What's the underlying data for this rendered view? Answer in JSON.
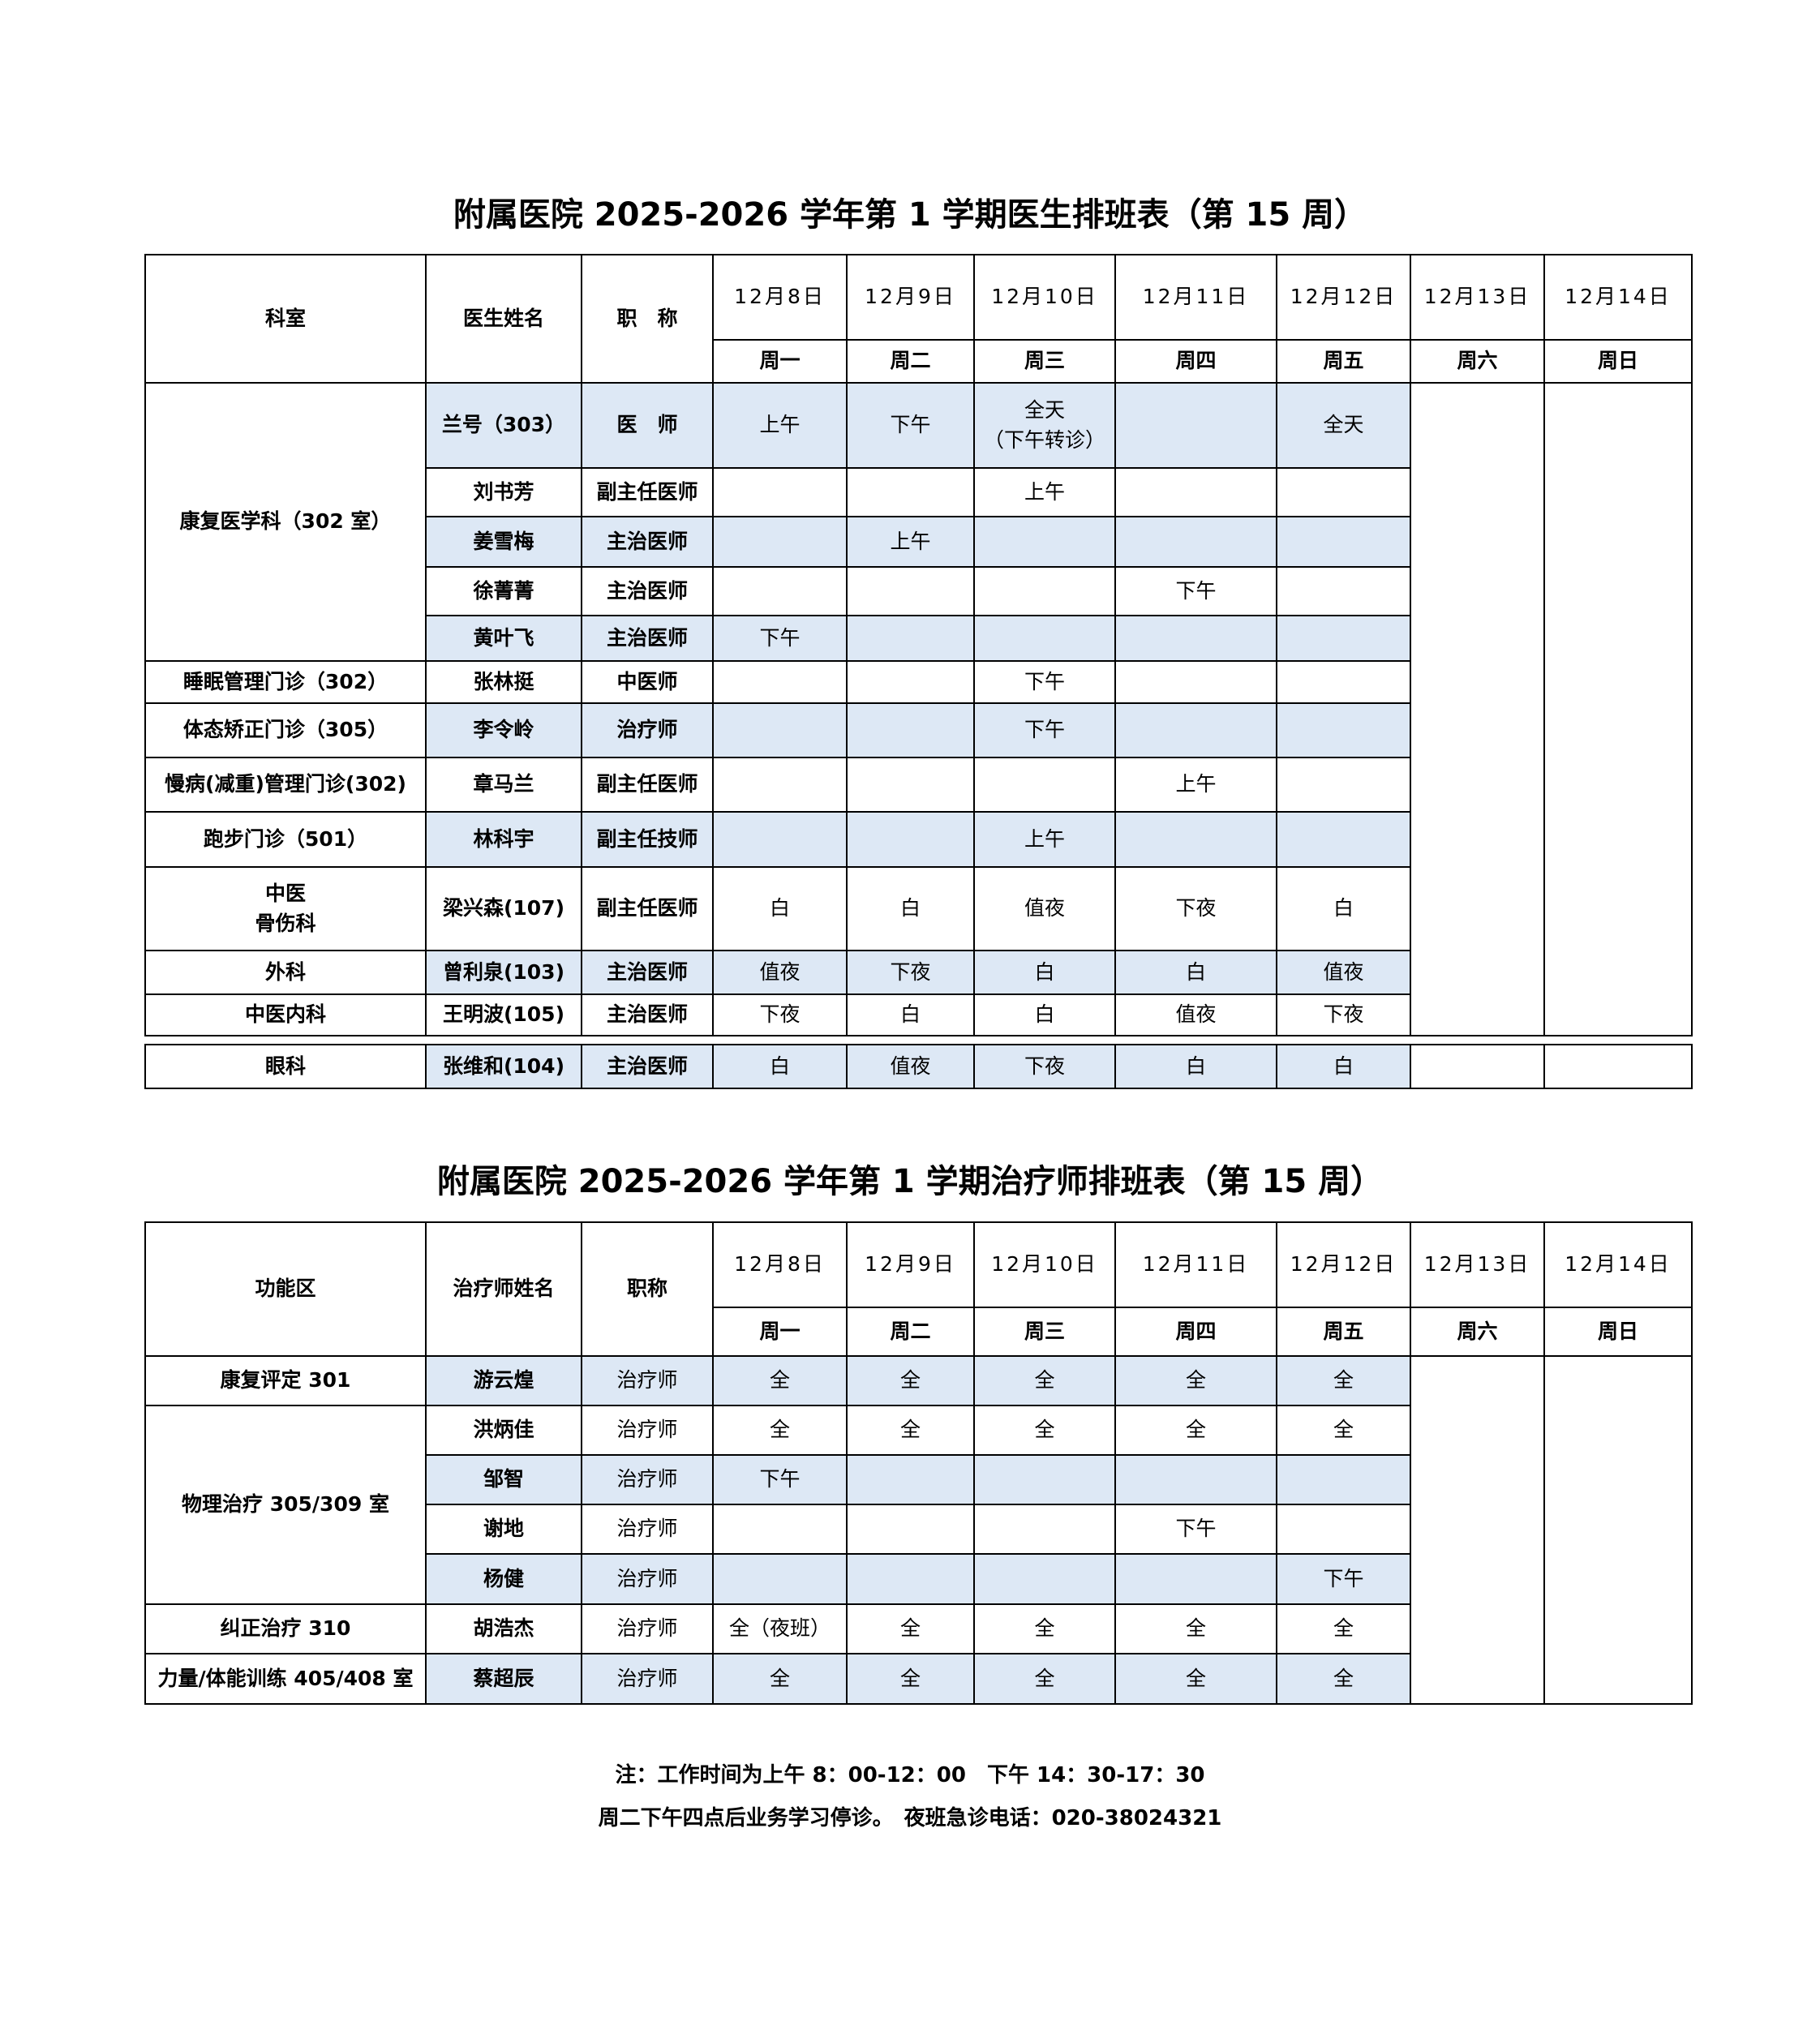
{
  "doctor_schedule": {
    "title": "附属医院 2025-2026 学年第 1 学期医生排班表（第 15 周）",
    "headers": {
      "dept": "科室",
      "name": "医生姓名",
      "title": "职　称"
    },
    "dates": [
      "12月8日",
      "12月9日",
      "12月10日",
      "12月11日",
      "12月12日",
      "12月13日",
      "12月14日"
    ],
    "weekdays": [
      "周一",
      "周二",
      "周三",
      "周四",
      "周五",
      "周六",
      "周日"
    ],
    "groups": [
      {
        "dept": "康复医学科（302 室）",
        "members": [
          {
            "name": "兰号（303）",
            "title": "医　师",
            "shifts": [
              "上午",
              "下午",
              "全天\n（下午转诊）",
              "",
              "全天"
            ],
            "shaded": true
          },
          {
            "name": "刘书芳",
            "title": "副主任医师",
            "shifts": [
              "",
              "",
              "上午",
              "",
              ""
            ],
            "shaded": false
          },
          {
            "name": "姜雪梅",
            "title": "主治医师",
            "shifts": [
              "",
              "上午",
              "",
              "",
              ""
            ],
            "shaded": true
          },
          {
            "name": "徐菁菁",
            "title": "主治医师",
            "shifts": [
              "",
              "",
              "",
              "下午",
              ""
            ],
            "shaded": false
          },
          {
            "name": "黄叶飞",
            "title": "主治医师",
            "shifts": [
              "下午",
              "",
              "",
              "",
              ""
            ],
            "shaded": true
          }
        ]
      },
      {
        "dept": "睡眠管理门诊（302）",
        "members": [
          {
            "name": "张林挺",
            "title": "中医师",
            "shifts": [
              "",
              "",
              "下午",
              "",
              ""
            ],
            "shaded": false
          }
        ]
      },
      {
        "dept": "体态矫正门诊（305）",
        "members": [
          {
            "name": "李令岭",
            "title": "治疗师",
            "shifts": [
              "",
              "",
              "下午",
              "",
              ""
            ],
            "shaded": true
          }
        ]
      },
      {
        "dept": "慢病(减重)管理门诊(302)",
        "members": [
          {
            "name": "章马兰",
            "title": "副主任医师",
            "shifts": [
              "",
              "",
              "",
              "上午",
              ""
            ],
            "shaded": false
          }
        ]
      },
      {
        "dept": "跑步门诊（501）",
        "members": [
          {
            "name": "林科宇",
            "title": "副主任技师",
            "shifts": [
              "",
              "",
              "上午",
              "",
              ""
            ],
            "shaded": true
          }
        ]
      },
      {
        "dept": "中医\n骨伤科",
        "members": [
          {
            "name": "梁兴森(107)",
            "title": "副主任医师",
            "shifts": [
              "白",
              "白",
              "值夜",
              "下夜",
              "白"
            ],
            "shaded": false
          }
        ]
      },
      {
        "dept": "外科",
        "members": [
          {
            "name": "曾利泉(103)",
            "title": "主治医师",
            "shifts": [
              "值夜",
              "下夜",
              "白",
              "白",
              "值夜"
            ],
            "shaded": true
          }
        ]
      },
      {
        "dept": "中医内科",
        "members": [
          {
            "name": "王明波(105)",
            "title": "主治医师",
            "shifts": [
              "下夜",
              "白",
              "白",
              "值夜",
              "下夜"
            ],
            "shaded": false
          }
        ]
      }
    ],
    "extra_row": {
      "dept": "眼科",
      "name": "张维和(104)",
      "title": "主治医师",
      "shifts": [
        "白",
        "值夜",
        "下夜",
        "白",
        "白",
        "",
        ""
      ],
      "shaded": true
    }
  },
  "therapist_schedule": {
    "title": "附属医院 2025-2026 学年第 1 学期治疗师排班表（第 15 周）",
    "headers": {
      "dept": "功能区",
      "name": "治疗师姓名",
      "title": "职称"
    },
    "dates": [
      "12月8日",
      "12月9日",
      "12月10日",
      "12月11日",
      "12月12日",
      "12月13日",
      "12月14日"
    ],
    "weekdays": [
      "周一",
      "周二",
      "周三",
      "周四",
      "周五",
      "周六",
      "周日"
    ],
    "groups": [
      {
        "dept": "康复评定 301",
        "members": [
          {
            "name": "游云煌",
            "title": "治疗师",
            "shifts": [
              "全",
              "全",
              "全",
              "全",
              "全"
            ],
            "shaded": true
          }
        ]
      },
      {
        "dept": "物理治疗  305/309 室",
        "members": [
          {
            "name": "洪炳佳",
            "title": "治疗师",
            "shifts": [
              "全",
              "全",
              "全",
              "全",
              "全"
            ],
            "shaded": false
          },
          {
            "name": "邹智",
            "title": "治疗师",
            "shifts": [
              "下午",
              "",
              "",
              "",
              ""
            ],
            "shaded": true
          },
          {
            "name": "谢地",
            "title": "治疗师",
            "shifts": [
              "",
              "",
              "",
              "下午",
              ""
            ],
            "shaded": false
          },
          {
            "name": "杨健",
            "title": "治疗师",
            "shifts": [
              "",
              "",
              "",
              "",
              "下午"
            ],
            "shaded": true
          }
        ]
      },
      {
        "dept": "纠正治疗 310",
        "members": [
          {
            "name": "胡浩杰",
            "title": "治疗师",
            "shifts": [
              "全（夜班）",
              "全",
              "全",
              "全",
              "全"
            ],
            "shaded": false
          }
        ]
      },
      {
        "dept": "力量/体能训练 405/408 室",
        "members": [
          {
            "name": "蔡超辰",
            "title": "治疗师",
            "shifts": [
              "全",
              "全",
              "全",
              "全",
              "全"
            ],
            "shaded": true
          }
        ]
      }
    ]
  },
  "notes": [
    "注：工作时间为上午 8：00-12：00　下午 14：30-17：30",
    "周二下午四点后业务学习停诊。　夜班急诊电话：020-38024321"
  ],
  "colors": {
    "shaded_row": "#dde8f5",
    "border": "#000000"
  }
}
